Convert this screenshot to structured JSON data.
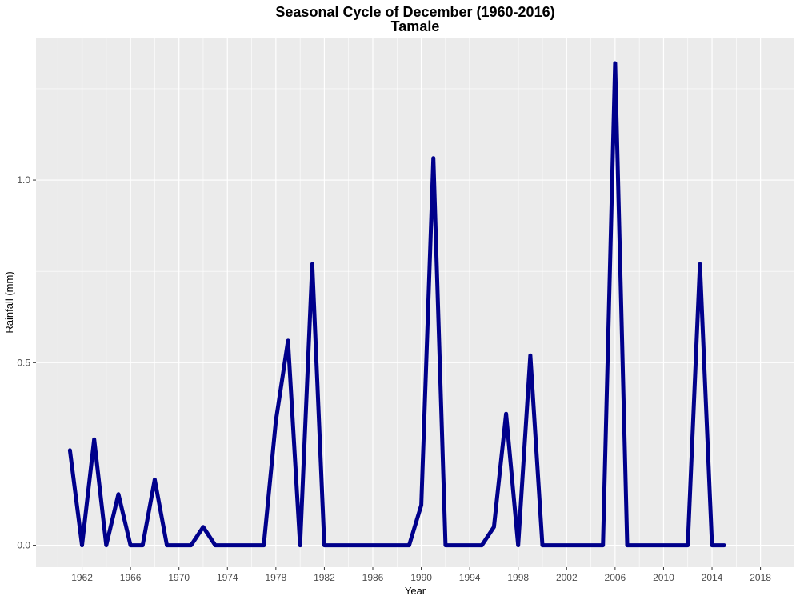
{
  "chart_data": {
    "type": "line",
    "title": "Seasonal Cycle of December (1960-2016)",
    "subtitle": "Tamale",
    "xlabel": "Year",
    "ylabel": "Rainfall (mm)",
    "xlim": [
      1958.2,
      2020.8
    ],
    "ylim": [
      -0.06,
      1.39
    ],
    "x_ticks": [
      1962,
      1966,
      1970,
      1974,
      1978,
      1982,
      1986,
      1990,
      1994,
      1998,
      2002,
      2006,
      2010,
      2014,
      2018
    ],
    "x_tick_labels": [
      "1962",
      "1966",
      "1970",
      "1974",
      "1978",
      "1982",
      "1986",
      "1990",
      "1994",
      "1998",
      "2002",
      "2006",
      "2010",
      "2014",
      "2018"
    ],
    "y_ticks": [
      0.0,
      0.5,
      1.0
    ],
    "y_tick_labels": [
      "0.0",
      "0.5",
      "1.0"
    ],
    "grid": true,
    "background": "#ebebeb",
    "grid_color": "#ffffff",
    "line_color": "#00008b",
    "x": [
      1961,
      1962,
      1963,
      1964,
      1965,
      1966,
      1967,
      1968,
      1969,
      1970,
      1971,
      1972,
      1973,
      1974,
      1975,
      1976,
      1977,
      1978,
      1979,
      1980,
      1981,
      1982,
      1983,
      1984,
      1985,
      1986,
      1987,
      1988,
      1989,
      1990,
      1991,
      1992,
      1993,
      1994,
      1995,
      1996,
      1997,
      1998,
      1999,
      2000,
      2001,
      2002,
      2003,
      2004,
      2005,
      2006,
      2007,
      2008,
      2009,
      2010,
      2011,
      2012,
      2013,
      2014,
      2015
    ],
    "values": [
      0.26,
      0.0,
      0.29,
      0.0,
      0.14,
      0.0,
      0.0,
      0.18,
      0.0,
      0.0,
      0.0,
      0.05,
      0.0,
      0.0,
      0.0,
      0.0,
      0.0,
      0.34,
      0.56,
      0.0,
      0.77,
      0.0,
      0.0,
      0.0,
      0.0,
      0.0,
      0.0,
      0.0,
      0.0,
      0.11,
      1.06,
      0.0,
      0.0,
      0.0,
      0.0,
      0.05,
      0.36,
      0.0,
      0.52,
      0.0,
      0.0,
      0.0,
      0.0,
      0.0,
      0.0,
      1.32,
      0.0,
      0.0,
      0.0,
      0.0,
      0.0,
      0.0,
      0.77,
      0.0,
      0.0
    ]
  }
}
